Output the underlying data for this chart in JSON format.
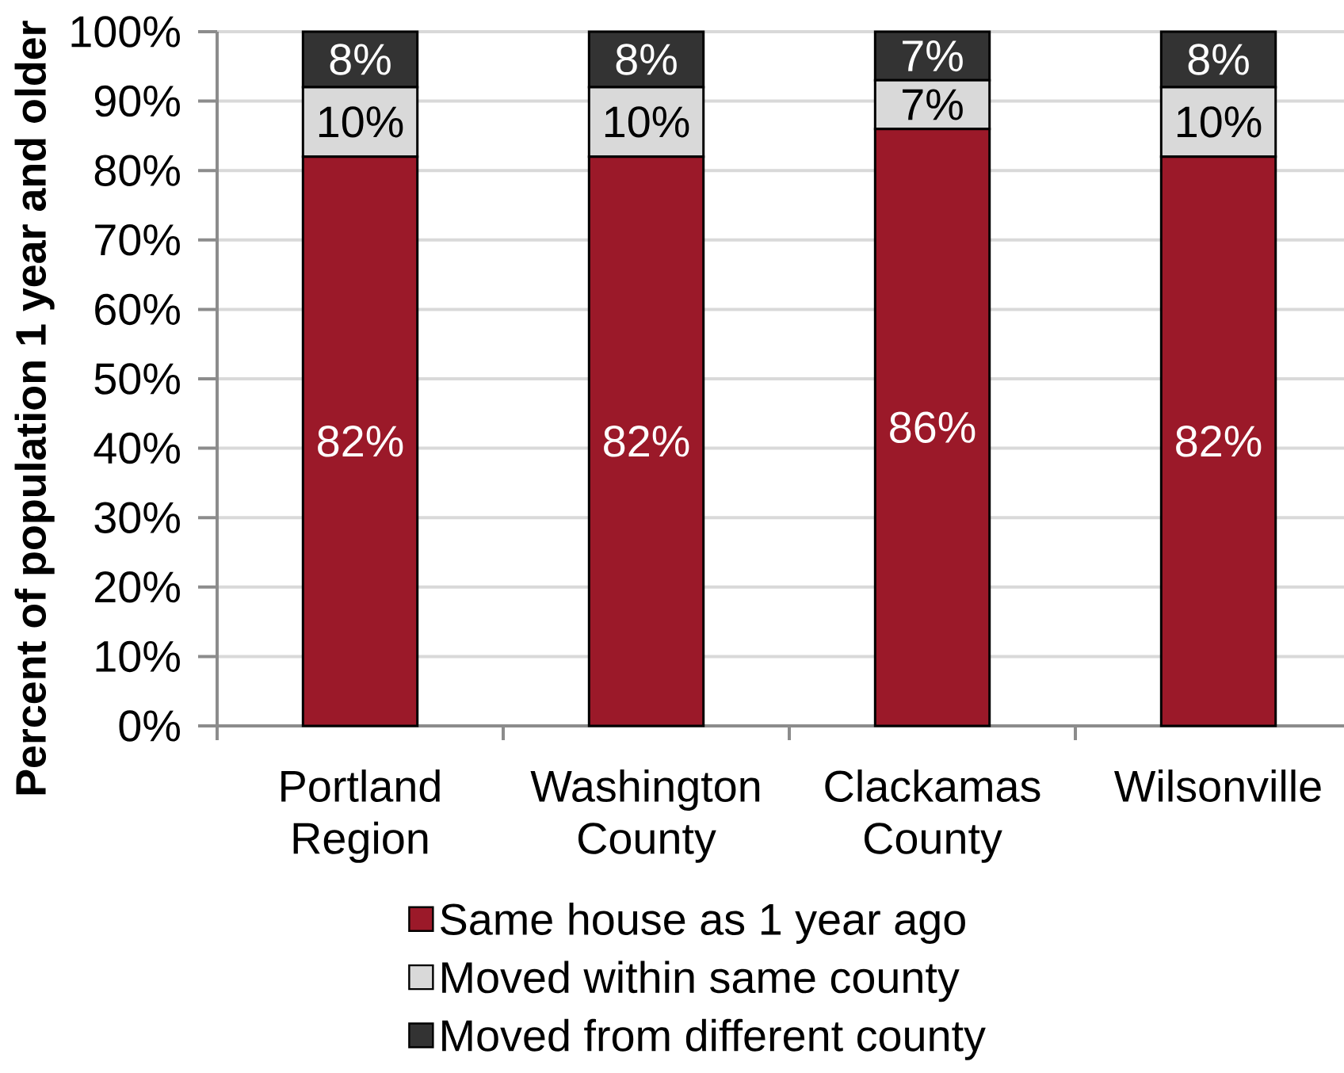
{
  "chart_data": {
    "type": "bar",
    "stacked": true,
    "ylabel": "Percent of population 1 year and older",
    "categories": [
      "Portland Region",
      "Washington County",
      "Clackamas County",
      "Wilsonville"
    ],
    "series": [
      {
        "name": "Same house as 1 year ago",
        "color": "#9b1929",
        "values": [
          82,
          82,
          86,
          82
        ],
        "value_labels": [
          "82%",
          "82%",
          "86%",
          "82%"
        ]
      },
      {
        "name": "Moved within same county",
        "color": "#d9d9d9",
        "values": [
          10,
          10,
          7,
          10
        ],
        "value_labels": [
          "10%",
          "10%",
          "7%",
          "10%"
        ]
      },
      {
        "name": "Moved from different county",
        "color": "#333333",
        "values": [
          8,
          8,
          7,
          8
        ],
        "value_labels": [
          "8%",
          "8%",
          "7%",
          "8%"
        ]
      }
    ],
    "ylim": [
      0,
      100
    ],
    "yticks": [
      {
        "value": 0,
        "label": "0%"
      },
      {
        "value": 10,
        "label": "10%"
      },
      {
        "value": 20,
        "label": "20%"
      },
      {
        "value": 30,
        "label": "30%"
      },
      {
        "value": 40,
        "label": "40%"
      },
      {
        "value": 50,
        "label": "50%"
      },
      {
        "value": 60,
        "label": "60%"
      },
      {
        "value": 70,
        "label": "70%"
      },
      {
        "value": 80,
        "label": "80%"
      },
      {
        "value": 90,
        "label": "90%"
      },
      {
        "value": 100,
        "label": "100%"
      }
    ],
    "grid": "y",
    "legend": "bottom"
  }
}
